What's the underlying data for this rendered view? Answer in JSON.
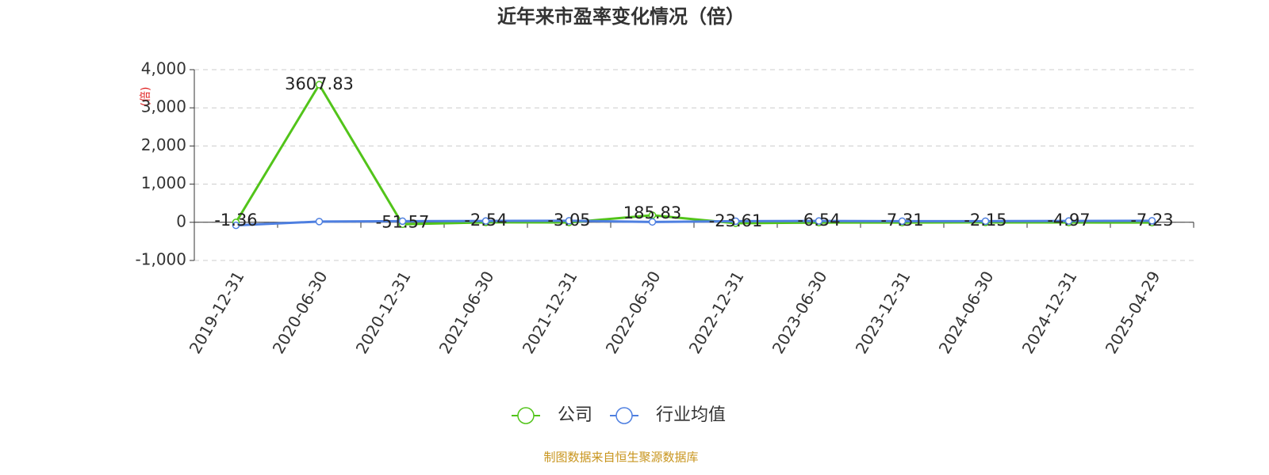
{
  "chart_data": {
    "type": "line",
    "title": "近年来市盈率变化情况（倍）",
    "y_label": "(倍)",
    "footer": "制图数据来自恒生聚源数据库",
    "categories": [
      "2019-12-31",
      "2020-06-30",
      "2020-12-31",
      "2021-06-30",
      "2021-12-31",
      "2022-06-30",
      "2022-12-31",
      "2023-06-30",
      "2023-12-31",
      "2024-06-30",
      "2024-12-31",
      "2025-04-29"
    ],
    "series": [
      {
        "name": "公司",
        "color": "#52c41a",
        "values": [
          -1.36,
          3607.83,
          -51.57,
          -2.54,
          -3.05,
          185.83,
          -23.61,
          -6.54,
          -7.31,
          -2.15,
          -4.97,
          -7.23
        ]
      },
      {
        "name": "行业均值",
        "color": "#4e7fe0",
        "values": [
          -80,
          20,
          30,
          35,
          40,
          10,
          30,
          35,
          30,
          30,
          35,
          40
        ]
      }
    ],
    "ylim": [
      -1000,
      4000
    ],
    "yticks": [
      {
        "value": -1000,
        "label": "-1,000"
      },
      0,
      {
        "value": 1000,
        "label": "1,000"
      },
      {
        "value": 2000,
        "label": "2,000"
      },
      {
        "value": 3000,
        "label": "3,000"
      },
      {
        "value": 4000,
        "label": "4,000"
      }
    ],
    "grid": true
  }
}
